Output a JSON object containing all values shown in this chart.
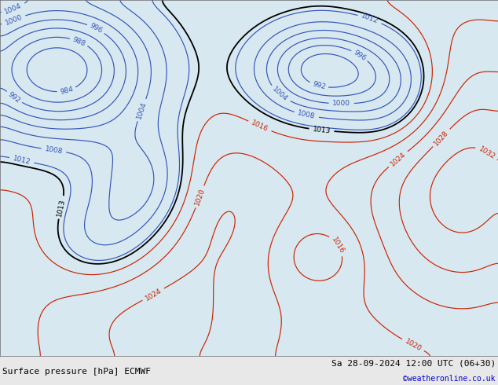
{
  "title_left": "Surface pressure [hPa] ECMWF",
  "title_right": "Sa 28-09-2024 12:00 UTC (06+30)",
  "credit": "©weatheronline.co.uk",
  "bg_color": "#ffffff",
  "land_color": "#b5d9a0",
  "sea_color": "#d8e8f0",
  "ocean_color": "#d0dce8",
  "figsize": [
    6.34,
    4.9
  ],
  "dpi": 100,
  "lon_min": -30,
  "lon_max": 40,
  "lat_min": 28,
  "lat_max": 74,
  "blue_color": "#3355bb",
  "red_color": "#cc2200",
  "black_color": "#000000",
  "label_fontsize": 6.5,
  "contour_linewidth": 0.85,
  "title_fontsize": 8.0,
  "credit_fontsize": 7.0,
  "credit_color": "#0000cc",
  "lows": [
    {
      "lon": -22,
      "lat": 65,
      "value": 984,
      "sigma_lon": 7,
      "sigma_lat": 5
    },
    {
      "lon": -10,
      "lat": 50,
      "value": 1000,
      "sigma_lon": 4,
      "sigma_lat": 4
    },
    {
      "lon": -15,
      "lat": 43,
      "value": 1005,
      "sigma_lon": 3.5,
      "sigma_lat": 3.5
    },
    {
      "lon": 12,
      "lat": 65,
      "value": 984,
      "sigma_lon": 5,
      "sigma_lat": 4
    },
    {
      "lon": 24,
      "lat": 64,
      "value": 992,
      "sigma_lon": 6,
      "sigma_lat": 5
    },
    {
      "lon": 14,
      "lat": 41,
      "value": 1011,
      "sigma_lon": 2,
      "sigma_lat": 2
    }
  ],
  "highs": [
    {
      "lon": -10,
      "lat": 30,
      "value": 1024,
      "sigma_lon": 10,
      "sigma_lat": 8
    },
    {
      "lon": 32,
      "lat": 52,
      "value": 1033,
      "sigma_lon": 7,
      "sigma_lat": 8
    }
  ]
}
